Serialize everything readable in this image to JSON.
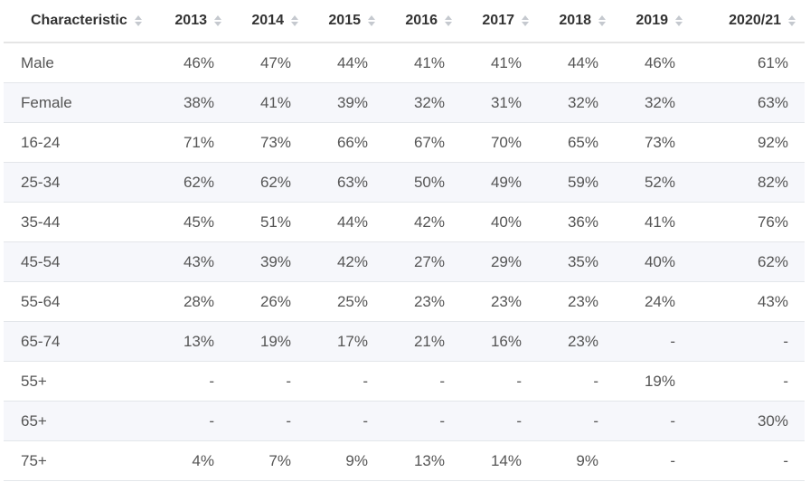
{
  "chart_data": {
    "type": "table",
    "columns": [
      "Characteristic",
      "2013",
      "2014",
      "2015",
      "2016",
      "2017",
      "2018",
      "2019",
      "2020/21"
    ],
    "rows": [
      [
        "Male",
        "46%",
        "47%",
        "44%",
        "41%",
        "41%",
        "44%",
        "46%",
        "61%"
      ],
      [
        "Female",
        "38%",
        "41%",
        "39%",
        "32%",
        "31%",
        "32%",
        "32%",
        "63%"
      ],
      [
        "16-24",
        "71%",
        "73%",
        "66%",
        "67%",
        "70%",
        "65%",
        "73%",
        "92%"
      ],
      [
        "25-34",
        "62%",
        "62%",
        "63%",
        "50%",
        "49%",
        "59%",
        "52%",
        "82%"
      ],
      [
        "35-44",
        "45%",
        "51%",
        "44%",
        "42%",
        "40%",
        "36%",
        "41%",
        "76%"
      ],
      [
        "45-54",
        "43%",
        "39%",
        "42%",
        "27%",
        "29%",
        "35%",
        "40%",
        "62%"
      ],
      [
        "55-64",
        "28%",
        "26%",
        "25%",
        "23%",
        "23%",
        "23%",
        "24%",
        "43%"
      ],
      [
        "65-74",
        "13%",
        "19%",
        "17%",
        "21%",
        "16%",
        "23%",
        "-",
        "-"
      ],
      [
        "55+",
        "-",
        "-",
        "-",
        "-",
        "-",
        "-",
        "19%",
        "-"
      ],
      [
        "65+",
        "-",
        "-",
        "-",
        "-",
        "-",
        "-",
        "-",
        "30%"
      ],
      [
        "75+",
        "4%",
        "7%",
        "9%",
        "13%",
        "14%",
        "9%",
        "-",
        "-"
      ]
    ]
  }
}
